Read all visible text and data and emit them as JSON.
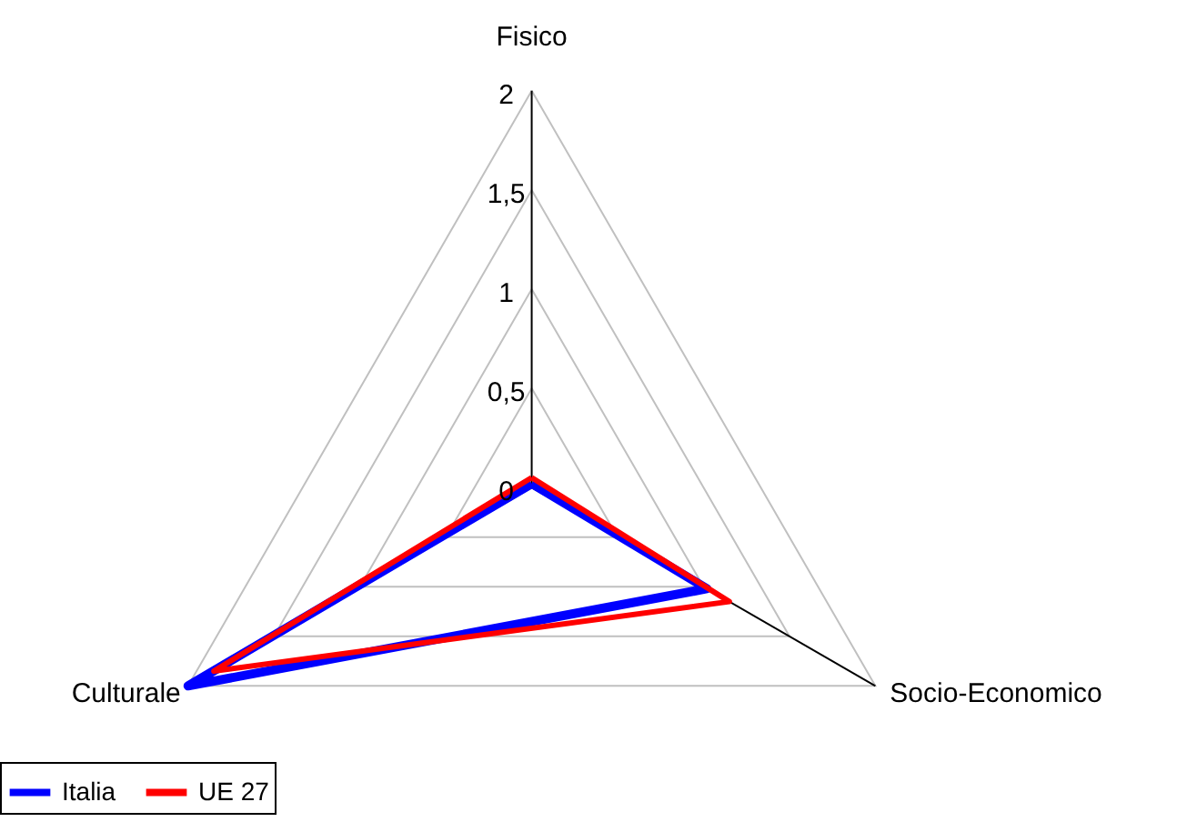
{
  "chart_data": {
    "type": "radar",
    "categories": [
      "Fisico",
      "Socio-Economico",
      "Culturale"
    ],
    "series": [
      {
        "name": "Italia",
        "color": "#0000ff",
        "values": [
          0.02,
          1.02,
          2.0
        ]
      },
      {
        "name": "UE 27",
        "color": "#ff0000",
        "values": [
          0.05,
          1.15,
          1.85
        ]
      }
    ],
    "ylim": [
      0,
      2
    ],
    "yticks": [
      0,
      {
        "value": 0.5,
        "label": "0,5"
      },
      1,
      {
        "value": 1.5,
        "label": "1,5"
      },
      2
    ],
    "grid": true,
    "legend": "bottom"
  }
}
